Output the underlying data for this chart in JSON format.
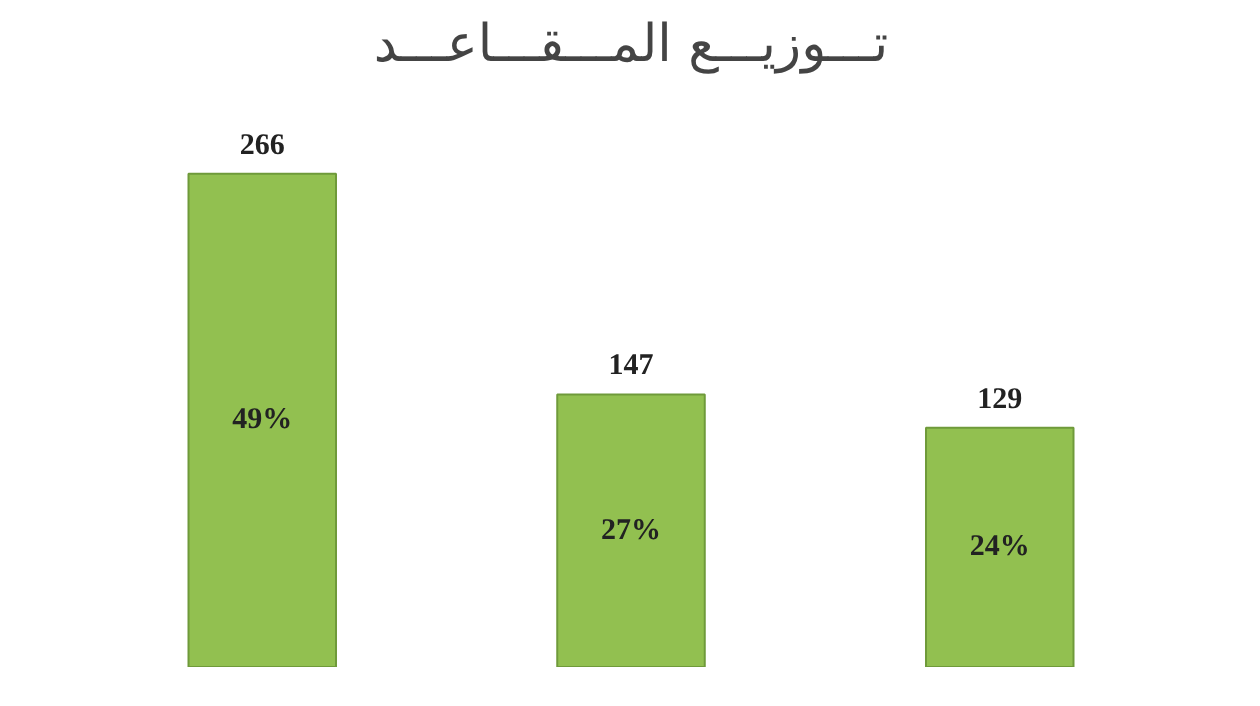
{
  "chart_data": {
    "type": "bar",
    "title": "تـــوزيـــع المـــقـــاعـــد",
    "categories": [
      null,
      null,
      null
    ],
    "values": [
      266,
      147,
      129
    ],
    "color": "#92c050",
    "data_labels": true,
    "annotations": [
      "49%",
      "27%",
      "24%"
    ]
  }
}
